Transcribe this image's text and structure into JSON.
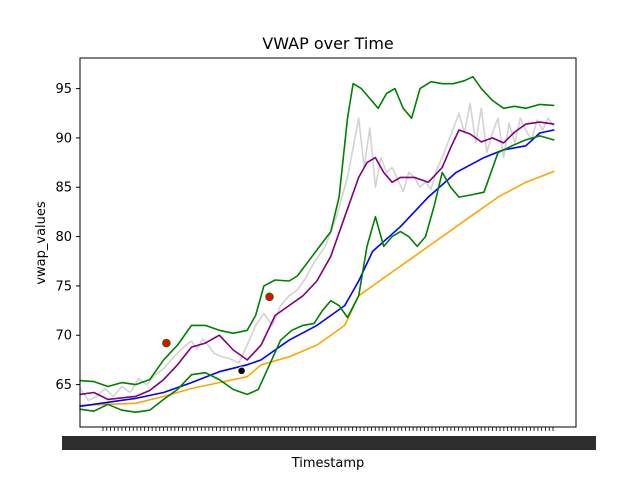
{
  "chart_data": {
    "type": "line",
    "title": "VWAP over Time",
    "xlabel": "Timestamp",
    "ylabel": "vwap_values",
    "ylim": [
      60.7,
      98.1
    ],
    "yticks": [
      65,
      70,
      75,
      80,
      85,
      90,
      95
    ],
    "x_ticks_crowded": true,
    "grid": false,
    "legend": "none",
    "n_points": 120,
    "series": [
      {
        "color": "#d3d3d3",
        "points": [
          [
            0,
            64.6
          ],
          [
            3,
            63.4
          ],
          [
            6,
            63.8
          ],
          [
            9,
            64.6
          ],
          [
            12,
            63.8
          ],
          [
            15,
            64.8
          ],
          [
            18,
            64.2
          ],
          [
            21,
            65.6
          ],
          [
            24,
            65.0
          ],
          [
            27,
            66.0
          ],
          [
            30,
            66.6
          ],
          [
            33,
            67.6
          ],
          [
            35,
            68.2
          ],
          [
            38,
            69.0
          ],
          [
            40,
            69.4
          ],
          [
            42,
            68.6
          ],
          [
            44,
            69.6
          ],
          [
            46,
            69.0
          ],
          [
            48,
            68.2
          ],
          [
            51,
            67.8
          ],
          [
            54,
            67.6
          ],
          [
            57,
            67.2
          ],
          [
            60,
            69.0
          ],
          [
            63,
            71.0
          ],
          [
            66,
            72.2
          ],
          [
            69,
            71.0
          ],
          [
            72,
            73.0
          ],
          [
            75,
            74.0
          ],
          [
            78,
            74.6
          ],
          [
            81,
            75.8
          ],
          [
            84,
            77.4
          ],
          [
            88,
            79.0
          ],
          [
            92,
            82.0
          ],
          [
            96,
            86.0
          ],
          [
            98,
            89.0
          ],
          [
            100,
            92.0
          ],
          [
            102,
            87.0
          ],
          [
            104,
            91.0
          ],
          [
            106,
            85.0
          ],
          [
            108,
            88.0
          ],
          [
            110,
            86.5
          ],
          [
            112,
            87.0
          ],
          [
            114,
            85.8
          ],
          [
            116,
            84.6
          ],
          [
            118,
            86.5
          ],
          [
            120,
            86.0
          ],
          [
            122,
            85.0
          ],
          [
            124,
            85.5
          ],
          [
            126,
            84.8
          ],
          [
            128,
            86.8
          ],
          [
            130,
            88.0
          ],
          [
            132,
            89.5
          ],
          [
            134,
            91.0
          ],
          [
            136,
            92.5
          ],
          [
            138,
            90.5
          ],
          [
            140,
            93.5
          ],
          [
            142,
            89.5
          ],
          [
            144,
            93.0
          ],
          [
            146,
            88.5
          ],
          [
            148,
            90.5
          ],
          [
            150,
            92.0
          ],
          [
            152,
            88.0
          ],
          [
            154,
            91.5
          ],
          [
            156,
            89.5
          ],
          [
            158,
            92.0
          ],
          [
            160,
            90.8
          ],
          [
            162,
            89.8
          ],
          [
            164,
            91.8
          ],
          [
            166,
            90.8
          ],
          [
            168,
            92.0
          ],
          [
            170,
            91.2
          ]
        ]
      },
      {
        "color": "#ffa500",
        "points": [
          [
            0,
            62.9
          ],
          [
            10,
            63.0
          ],
          [
            20,
            63.1
          ],
          [
            30,
            63.8
          ],
          [
            40,
            64.6
          ],
          [
            50,
            65.2
          ],
          [
            60,
            65.8
          ],
          [
            65,
            67.0
          ],
          [
            75,
            67.8
          ],
          [
            85,
            69.0
          ],
          [
            95,
            71.0
          ],
          [
            100,
            74.0
          ],
          [
            110,
            76.0
          ],
          [
            120,
            78.0
          ],
          [
            130,
            80.0
          ],
          [
            140,
            82.0
          ],
          [
            150,
            84.0
          ],
          [
            160,
            85.5
          ],
          [
            170,
            86.6
          ]
        ]
      },
      {
        "color": "#0000ff",
        "points": [
          [
            0,
            62.8
          ],
          [
            10,
            63.2
          ],
          [
            20,
            63.6
          ],
          [
            30,
            64.2
          ],
          [
            40,
            65.2
          ],
          [
            50,
            66.3
          ],
          [
            60,
            67.0
          ],
          [
            65,
            67.5
          ],
          [
            75,
            69.5
          ],
          [
            85,
            71.0
          ],
          [
            95,
            73.0
          ],
          [
            100,
            75.5
          ],
          [
            105,
            78.5
          ],
          [
            115,
            81.0
          ],
          [
            125,
            84.0
          ],
          [
            135,
            86.5
          ],
          [
            145,
            88.0
          ],
          [
            152,
            88.8
          ],
          [
            160,
            89.2
          ],
          [
            165,
            90.5
          ],
          [
            170,
            90.8
          ]
        ]
      },
      {
        "color": "#800080",
        "points": [
          [
            0,
            64.0
          ],
          [
            5,
            64.2
          ],
          [
            10,
            63.5
          ],
          [
            20,
            63.8
          ],
          [
            25,
            64.4
          ],
          [
            30,
            65.5
          ],
          [
            35,
            67.0
          ],
          [
            40,
            68.8
          ],
          [
            45,
            69.2
          ],
          [
            50,
            70.0
          ],
          [
            55,
            68.5
          ],
          [
            60,
            67.5
          ],
          [
            65,
            69.0
          ],
          [
            70,
            72.0
          ],
          [
            75,
            73.0
          ],
          [
            80,
            74.0
          ],
          [
            85,
            75.5
          ],
          [
            90,
            78.0
          ],
          [
            95,
            82.0
          ],
          [
            100,
            86.0
          ],
          [
            103,
            87.5
          ],
          [
            106,
            88.0
          ],
          [
            109,
            86.5
          ],
          [
            112,
            85.5
          ],
          [
            115,
            86.0
          ],
          [
            120,
            86.0
          ],
          [
            125,
            85.5
          ],
          [
            130,
            87.0
          ],
          [
            133,
            89.0
          ],
          [
            136,
            90.8
          ],
          [
            140,
            90.4
          ],
          [
            144,
            89.6
          ],
          [
            148,
            90.0
          ],
          [
            152,
            89.5
          ],
          [
            156,
            90.6
          ],
          [
            160,
            91.4
          ],
          [
            165,
            91.6
          ],
          [
            170,
            91.4
          ]
        ]
      },
      {
        "color": "#008000",
        "points": [
          [
            0,
            65.4
          ],
          [
            5,
            65.3
          ],
          [
            10,
            64.8
          ],
          [
            15,
            65.2
          ],
          [
            20,
            65.0
          ],
          [
            25,
            65.5
          ],
          [
            30,
            67.5
          ],
          [
            35,
            69.0
          ],
          [
            40,
            71.0
          ],
          [
            45,
            71.0
          ],
          [
            50,
            70.5
          ],
          [
            55,
            70.2
          ],
          [
            60,
            70.5
          ],
          [
            63,
            72.0
          ],
          [
            66,
            75.0
          ],
          [
            70,
            75.6
          ],
          [
            75,
            75.5
          ],
          [
            78,
            76.0
          ],
          [
            82,
            77.5
          ],
          [
            86,
            79.0
          ],
          [
            90,
            80.5
          ],
          [
            93,
            84.0
          ],
          [
            96,
            92.0
          ],
          [
            98,
            95.5
          ],
          [
            101,
            95.0
          ],
          [
            104,
            94.0
          ],
          [
            107,
            93.0
          ],
          [
            110,
            94.5
          ],
          [
            113,
            95.0
          ],
          [
            116,
            93.0
          ],
          [
            119,
            92.0
          ],
          [
            122,
            95.0
          ],
          [
            126,
            95.7
          ],
          [
            130,
            95.5
          ],
          [
            134,
            95.5
          ],
          [
            138,
            95.8
          ],
          [
            141,
            96.2
          ],
          [
            144,
            95.0
          ],
          [
            148,
            93.8
          ],
          [
            152,
            93.0
          ],
          [
            156,
            93.2
          ],
          [
            160,
            93.0
          ],
          [
            165,
            93.4
          ],
          [
            170,
            93.3
          ]
        ]
      },
      {
        "color": "#008000",
        "points": [
          [
            0,
            62.5
          ],
          [
            5,
            62.3
          ],
          [
            10,
            63.0
          ],
          [
            15,
            62.4
          ],
          [
            20,
            62.2
          ],
          [
            25,
            62.4
          ],
          [
            30,
            63.5
          ],
          [
            35,
            64.5
          ],
          [
            40,
            66.0
          ],
          [
            45,
            66.2
          ],
          [
            50,
            65.5
          ],
          [
            55,
            64.5
          ],
          [
            60,
            64.0
          ],
          [
            64,
            64.5
          ],
          [
            68,
            67.0
          ],
          [
            72,
            69.5
          ],
          [
            76,
            70.5
          ],
          [
            80,
            71.0
          ],
          [
            84,
            71.2
          ],
          [
            87,
            72.5
          ],
          [
            90,
            73.5
          ],
          [
            93,
            73.0
          ],
          [
            96,
            71.8
          ],
          [
            100,
            74.0
          ],
          [
            103,
            79.0
          ],
          [
            106,
            82.0
          ],
          [
            109,
            79.0
          ],
          [
            112,
            80.0
          ],
          [
            115,
            80.5
          ],
          [
            118,
            80.0
          ],
          [
            121,
            79.0
          ],
          [
            124,
            80.0
          ],
          [
            127,
            83.0
          ],
          [
            130,
            86.5
          ],
          [
            133,
            85.0
          ],
          [
            136,
            84.0
          ],
          [
            140,
            84.2
          ],
          [
            145,
            84.5
          ],
          [
            150,
            88.5
          ],
          [
            155,
            89.2
          ],
          [
            160,
            89.8
          ],
          [
            165,
            90.2
          ],
          [
            170,
            89.8
          ]
        ]
      }
    ],
    "markers": [
      {
        "x": 31,
        "y": 69.2,
        "color": "#ff0000",
        "edge": "#008000"
      },
      {
        "x": 68,
        "y": 73.9,
        "color": "#ff0000",
        "edge": "#008000"
      },
      {
        "x": 58,
        "y": 66.4,
        "color": "#000000",
        "edge": "#ffffff"
      }
    ]
  }
}
